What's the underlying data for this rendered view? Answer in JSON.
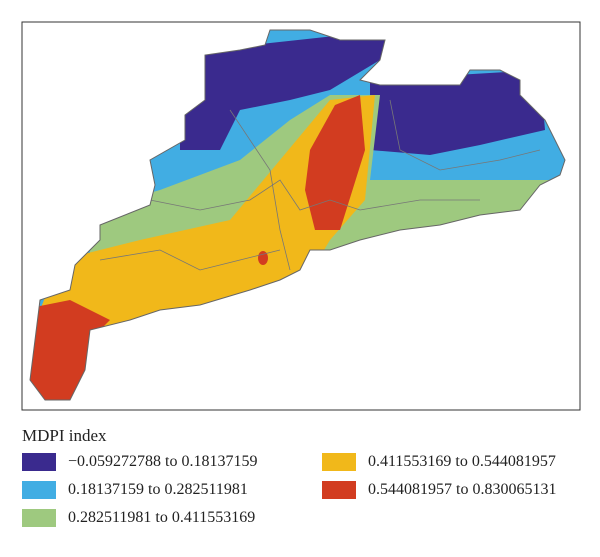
{
  "legend": {
    "title": "MDPI index",
    "items": [
      {
        "label": "−0.059272788 to 0.18137159",
        "color": "#3a2a8e"
      },
      {
        "label": "0.18137159 to 0.282511981",
        "color": "#41ade3"
      },
      {
        "label": "0.282511981 to 0.411553169",
        "color": "#9ec97f"
      },
      {
        "label": "0.411553169 to 0.544081957",
        "color": "#f1b81a"
      },
      {
        "label": "0.544081957 to 0.830065131",
        "color": "#d23c20"
      }
    ]
  }
}
